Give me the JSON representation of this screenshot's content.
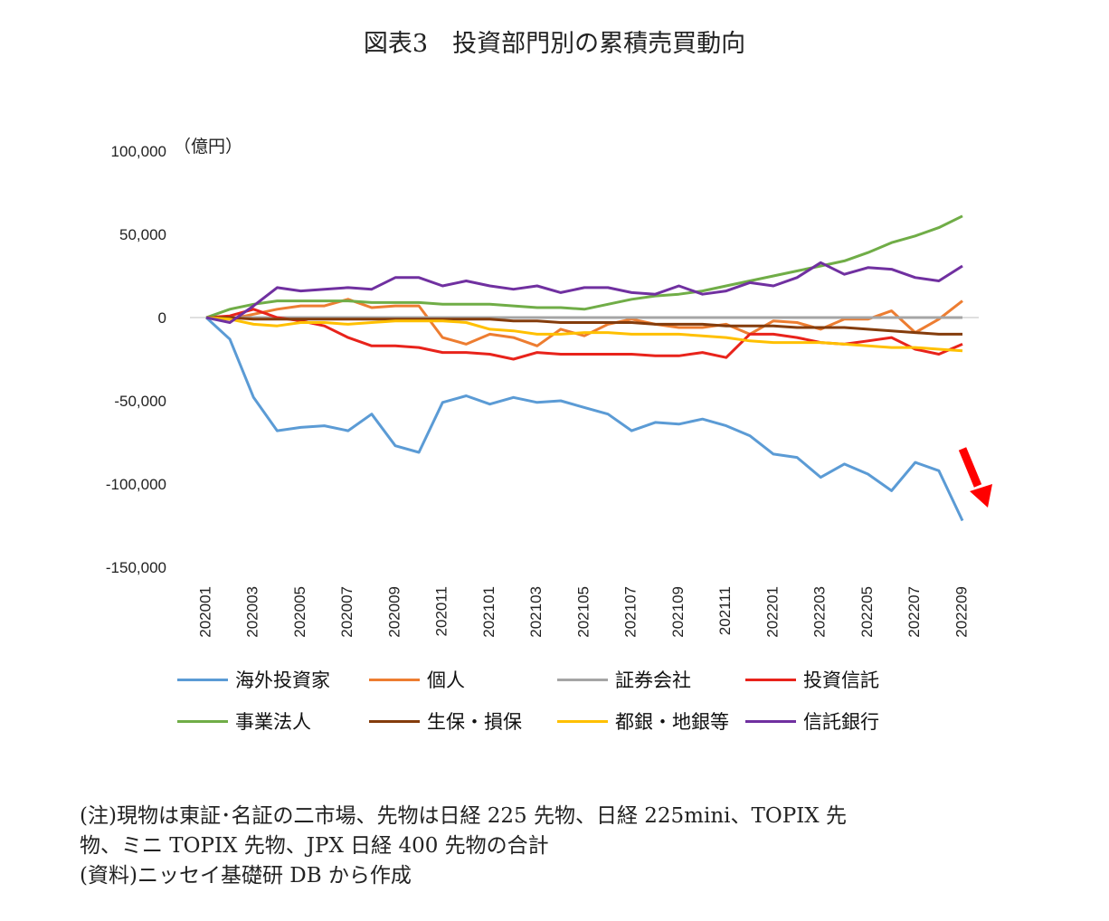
{
  "title": "図表3　投資部門別の累積売買動向",
  "notes": [
    "(注)現物は東証･名証の二市場、先物は日経 225 先物、日経 225mini、TOPIX 先",
    "物、ミニ TOPIX 先物、JPX 日経 400 先物の合計",
    "(資料)ニッセイ基礎研 DB から作成"
  ],
  "chart_data": {
    "type": "line",
    "unit_label": "（億円）",
    "ylim": [
      -150000,
      100000
    ],
    "yticks": [
      100000,
      50000,
      0,
      -50000,
      -100000,
      -150000
    ],
    "ytick_labels": [
      "100,000",
      "50,000",
      "0",
      "-50,000",
      "-100,000",
      "-150,000"
    ],
    "x": [
      "202001",
      "202002",
      "202003",
      "202004",
      "202005",
      "202006",
      "202007",
      "202008",
      "202009",
      "202010",
      "202011",
      "202012",
      "202101",
      "202102",
      "202103",
      "202104",
      "202105",
      "202106",
      "202107",
      "202108",
      "202109",
      "202110",
      "202111",
      "202112",
      "202201",
      "202202",
      "202203",
      "202204",
      "202205",
      "202206",
      "202207",
      "202208",
      "202209"
    ],
    "xtick_labels": [
      "202001",
      "202003",
      "202005",
      "202007",
      "202009",
      "202011",
      "202101",
      "202103",
      "202105",
      "202107",
      "202109",
      "202111",
      "202201",
      "202203",
      "202205",
      "202207",
      "202209"
    ],
    "series": [
      {
        "name": "海外投資家",
        "color": "#5B9BD5",
        "values": [
          0,
          -13000,
          -48000,
          -68000,
          -66000,
          -65000,
          -68000,
          -58000,
          -77000,
          -81000,
          -51000,
          -47000,
          -52000,
          -48000,
          -51000,
          -50000,
          -54000,
          -58000,
          -68000,
          -63000,
          -64000,
          -61000,
          -65000,
          -71000,
          -82000,
          -84000,
          -96000,
          -88000,
          -94000,
          -104000,
          -87000,
          -92000,
          -122000
        ]
      },
      {
        "name": "個人",
        "color": "#ED7D31",
        "values": [
          0,
          -1000,
          2000,
          5000,
          7000,
          7000,
          11000,
          6000,
          7000,
          7000,
          -12000,
          -16000,
          -10000,
          -12000,
          -17000,
          -7000,
          -11000,
          -4000,
          -1000,
          -4000,
          -6000,
          -6000,
          -4000,
          -10000,
          -2000,
          -3000,
          -7000,
          -1000,
          -1000,
          4000,
          -9000,
          -1000,
          10000
        ]
      },
      {
        "name": "証券会社",
        "color": "#A5A5A5",
        "values": [
          0,
          0,
          0,
          0,
          0,
          0,
          0,
          0,
          0,
          0,
          0,
          0,
          0,
          0,
          0,
          0,
          0,
          0,
          0,
          0,
          0,
          0,
          0,
          0,
          0,
          0,
          0,
          0,
          0,
          0,
          0,
          0,
          0
        ]
      },
      {
        "name": "投資信託",
        "color": "#E8231B",
        "values": [
          0,
          1000,
          5000,
          0,
          -2000,
          -5000,
          -12000,
          -17000,
          -17000,
          -18000,
          -21000,
          -21000,
          -22000,
          -25000,
          -21000,
          -22000,
          -22000,
          -22000,
          -22000,
          -23000,
          -23000,
          -21000,
          -24000,
          -10000,
          -10000,
          -12000,
          -15000,
          -16000,
          -14000,
          -12000,
          -19000,
          -22000,
          -16000
        ]
      },
      {
        "name": "事業法人",
        "color": "#70AD47",
        "values": [
          0,
          5000,
          8000,
          10000,
          10000,
          10000,
          10000,
          9000,
          9000,
          9000,
          8000,
          8000,
          8000,
          7000,
          6000,
          6000,
          5000,
          8000,
          11000,
          13000,
          14000,
          16000,
          19000,
          22000,
          25000,
          28000,
          31000,
          34000,
          39000,
          45000,
          49000,
          54000,
          61000
        ]
      },
      {
        "name": "生保・損保",
        "color": "#843C0C",
        "values": [
          0,
          0,
          -1000,
          -1000,
          -1000,
          -1000,
          -1000,
          -1000,
          -1000,
          -1000,
          -1000,
          -1000,
          -1000,
          -2000,
          -2000,
          -3000,
          -3000,
          -3000,
          -3000,
          -4000,
          -4000,
          -4000,
          -5000,
          -5000,
          -5000,
          -6000,
          -6000,
          -6000,
          -7000,
          -8000,
          -9000,
          -10000,
          -10000
        ]
      },
      {
        "name": "都銀・地銀等",
        "color": "#FFC000",
        "values": [
          0,
          -1000,
          -4000,
          -5000,
          -3000,
          -3000,
          -4000,
          -3000,
          -2000,
          -2000,
          -2000,
          -3000,
          -7000,
          -8000,
          -10000,
          -10000,
          -9000,
          -9000,
          -10000,
          -10000,
          -10000,
          -11000,
          -12000,
          -14000,
          -15000,
          -15000,
          -15000,
          -16000,
          -17000,
          -18000,
          -18000,
          -19000,
          -20000
        ]
      },
      {
        "name": "信託銀行",
        "color": "#7030A0",
        "values": [
          0,
          -3000,
          7000,
          18000,
          16000,
          17000,
          18000,
          17000,
          24000,
          24000,
          19000,
          22000,
          19000,
          17000,
          19000,
          15000,
          18000,
          18000,
          15000,
          14000,
          19000,
          14000,
          16000,
          21000,
          19000,
          24000,
          33000,
          26000,
          30000,
          29000,
          24000,
          22000,
          31000
        ]
      }
    ],
    "annotation": {
      "type": "arrow",
      "color": "#FF0000",
      "direction": "down-right"
    },
    "legend": {
      "position": "bottom",
      "columns": 4
    }
  }
}
